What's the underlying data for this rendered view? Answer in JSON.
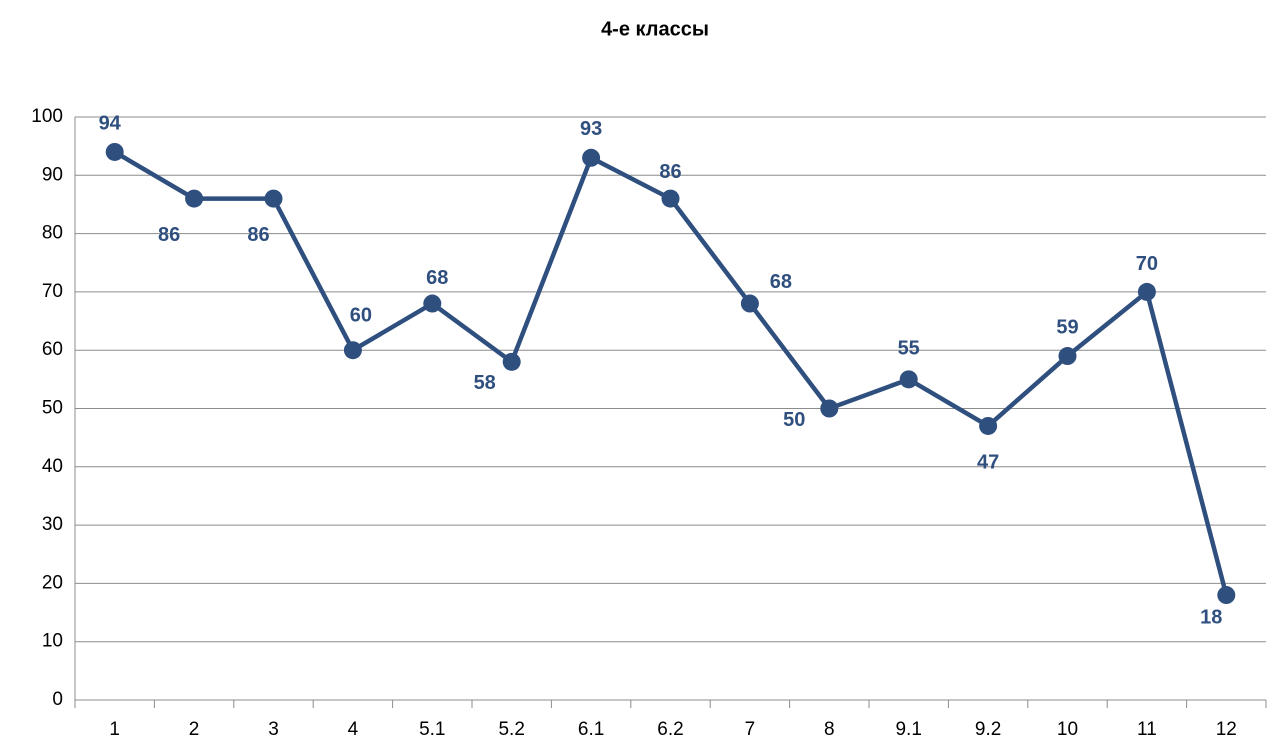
{
  "chart_data": {
    "type": "line",
    "title": "4-е классы",
    "categories": [
      "1",
      "2",
      "3",
      "4",
      "5.1",
      "5.2",
      "6.1",
      "6.2",
      "7",
      "8",
      "9.1",
      "9.2",
      "10",
      "11",
      "12"
    ],
    "series": [
      {
        "name": "4-е классы",
        "color": "#2f4f7f",
        "values": [
          94,
          86,
          86,
          60,
          68,
          58,
          93,
          86,
          68,
          50,
          55,
          47,
          59,
          70,
          18
        ]
      }
    ],
    "ylim": [
      0,
      100
    ],
    "yticks": [
      0,
      10,
      20,
      30,
      40,
      50,
      60,
      70,
      80,
      90,
      100
    ],
    "grid": true
  }
}
